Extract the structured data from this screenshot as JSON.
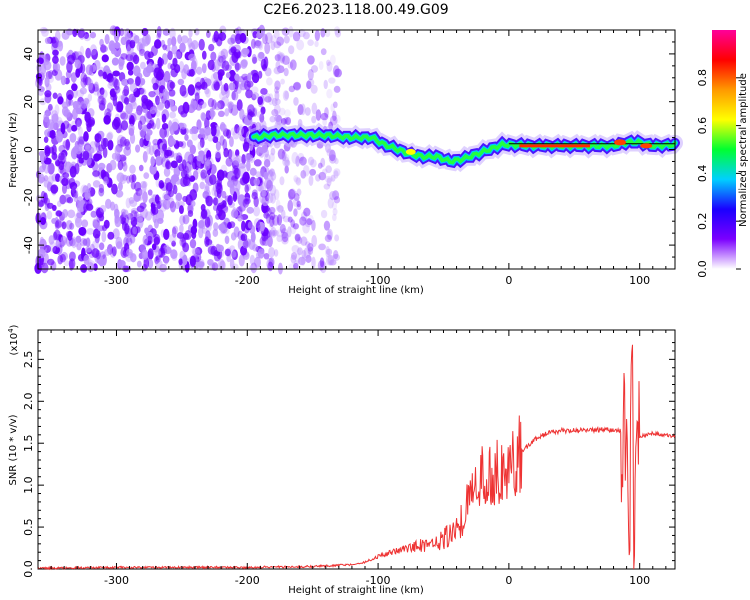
{
  "page_title": "C2E6.2023.118.00.49.G09",
  "chart_data": [
    {
      "type": "heatmap",
      "xlabel": "Height of straight line (km)",
      "ylabel": "Frequency (Hz)",
      "xlim": [
        -360,
        127
      ],
      "ylim": [
        -50,
        50
      ],
      "x_ticks": [
        -300,
        -200,
        -100,
        0,
        100
      ],
      "y_ticks": [
        -40,
        -20,
        0,
        20,
        40
      ],
      "ridge": {
        "description_free": true,
        "x": [
          -195,
          -180,
          -160,
          -140,
          -120,
          -105,
          -95,
          -85,
          -75,
          -65,
          -55,
          -45,
          -35,
          -25,
          -15,
          -5,
          0,
          20,
          40,
          60,
          80,
          90,
          100,
          110,
          127
        ],
        "y": [
          5,
          6,
          6,
          6,
          5,
          5,
          2,
          0,
          -2,
          -3,
          -3,
          -5,
          -4,
          -2,
          0,
          2,
          2,
          1.5,
          1.5,
          1.5,
          1.5,
          3,
          3,
          1.5,
          2
        ]
      },
      "colorbar": {
        "label": "Normalized spectral amplitude",
        "range": [
          0.0,
          1.0
        ],
        "ticks": [
          "0.0",
          "0.2",
          "0.4",
          "0.6",
          "0.8"
        ],
        "colors": [
          "#ffffff",
          "#7b00ff",
          "#1a00ff",
          "#00d0ff",
          "#00ff30",
          "#ffff00",
          "#ff9900",
          "#ff0000",
          "#ff0099"
        ]
      }
    },
    {
      "type": "line",
      "xlabel": "Height of straight line (km)",
      "ylabel": "SNR (10 * v/v)",
      "y_multiplier": "(x10",
      "y_multiplier_exp": "4",
      "y_multiplier_close": ")",
      "xlim": [
        -360,
        127
      ],
      "ylim": [
        0,
        2.85
      ],
      "x_ticks": [
        -300,
        -200,
        -100,
        0,
        100
      ],
      "y_ticks": [
        "0.0",
        "0.5",
        "1.0",
        "1.5",
        "2.0",
        "2.5"
      ],
      "series_color": "#ee3333",
      "x": [
        -360,
        -300,
        -250,
        -200,
        -150,
        -120,
        -110,
        -100,
        -90,
        -80,
        -70,
        -60,
        -50,
        -40,
        -35,
        -30,
        -25,
        -20,
        -15,
        -10,
        -5,
        0,
        10,
        20,
        30,
        40,
        50,
        60,
        70,
        80,
        85,
        88,
        90,
        92,
        94,
        96,
        98,
        100,
        110,
        127
      ],
      "y": [
        0.01,
        0.02,
        0.02,
        0.02,
        0.03,
        0.05,
        0.08,
        0.15,
        0.2,
        0.25,
        0.28,
        0.3,
        0.35,
        0.5,
        0.6,
        0.85,
        1.0,
        1.1,
        1.1,
        1.15,
        1.2,
        1.25,
        1.4,
        1.55,
        1.62,
        1.65,
        1.65,
        1.65,
        1.66,
        1.66,
        1.65,
        1.7,
        1.4,
        0.5,
        2.8,
        0.1,
        2.6,
        1.58,
        1.62,
        1.58
      ]
    }
  ]
}
